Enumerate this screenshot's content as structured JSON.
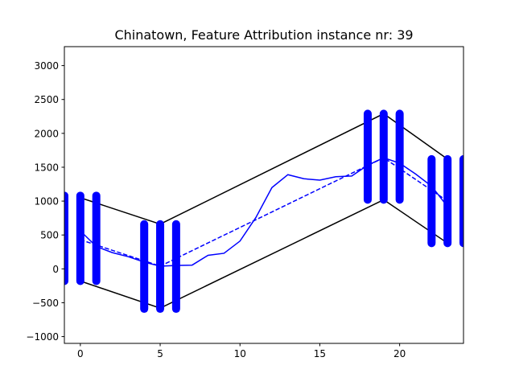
{
  "chart_data": {
    "type": "line",
    "title": "Chinatown, Feature Attribution instance nr: 39",
    "xlabel": "",
    "ylabel": "",
    "xlim": [
      -1,
      24
    ],
    "ylim": [
      -1100,
      3280
    ],
    "x_ticks": [
      0,
      5,
      10,
      15,
      20
    ],
    "y_ticks": [
      -1000,
      -500,
      0,
      500,
      1000,
      1500,
      2000,
      2500,
      3000
    ],
    "grid": false,
    "legend": "none",
    "colors": {
      "series": "#0000ff",
      "envelope": "#000000"
    },
    "series": [
      {
        "style": "solid",
        "x": [
          0,
          1,
          2,
          3,
          4,
          5,
          6,
          7,
          8,
          9,
          10,
          11,
          12,
          13,
          14,
          15,
          16,
          17,
          18,
          19,
          20,
          21,
          22,
          23
        ],
        "y": [
          560,
          330,
          240,
          180,
          100,
          40,
          50,
          55,
          200,
          230,
          410,
          760,
          1200,
          1390,
          1330,
          1310,
          1360,
          1370,
          1530,
          1640,
          1560,
          1400,
          1220,
          920
        ]
      },
      {
        "style": "dashed",
        "x": [
          0,
          5,
          19,
          23
        ],
        "y": [
          430,
          40,
          1640,
          1000
        ]
      },
      {
        "style": "envelope-upper",
        "x": [
          0,
          5,
          19,
          23
        ],
        "y": [
          1050,
          660,
          2290,
          1620
        ]
      },
      {
        "style": "envelope-lower",
        "x": [
          0,
          5,
          19,
          23
        ],
        "y": [
          -180,
          -580,
          1020,
          380
        ]
      }
    ],
    "attribution_bars": [
      {
        "x": 0,
        "y_min": -180,
        "y_max": 1080
      },
      {
        "x": 1,
        "y_min": -180,
        "y_max": 1080
      },
      {
        "x": -1,
        "y_min": -180,
        "y_max": 1080
      },
      {
        "x": 4,
        "y_min": -590,
        "y_max": 660
      },
      {
        "x": 5,
        "y_min": -590,
        "y_max": 660
      },
      {
        "x": 6,
        "y_min": -590,
        "y_max": 660
      },
      {
        "x": 18,
        "y_min": 1020,
        "y_max": 2290
      },
      {
        "x": 19,
        "y_min": 1020,
        "y_max": 2290
      },
      {
        "x": 20,
        "y_min": 1020,
        "y_max": 2290
      },
      {
        "x": 22,
        "y_min": 380,
        "y_max": 1620
      },
      {
        "x": 23,
        "y_min": 380,
        "y_max": 1620
      },
      {
        "x": 24,
        "y_min": 380,
        "y_max": 1620
      }
    ]
  }
}
